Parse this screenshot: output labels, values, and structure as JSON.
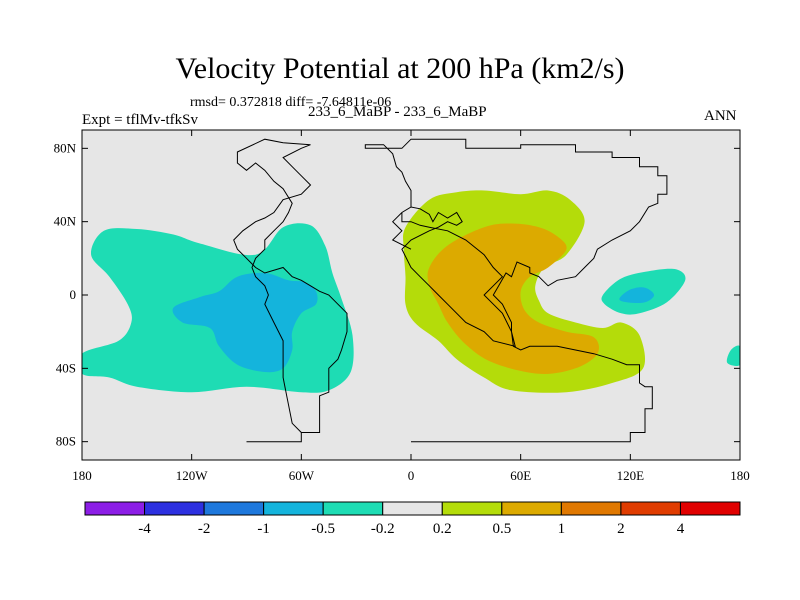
{
  "title": "Velocity Potential at 200 hPa (km2/s)",
  "stats": "rmsd= 0.372818 diff= -7.64811e-06",
  "left_label": "Expt = tflMv-tfkSv",
  "center_label": "233_6_MaBP - 233_6_MaBP",
  "right_label": "ANN",
  "chart_data": {
    "type": "contour-map",
    "title": "Velocity Potential at 200 hPa (km2/s)",
    "xlim": [
      -180,
      180
    ],
    "ylim": [
      -90,
      90
    ],
    "x_ticks": [
      {
        "value": -180,
        "label": "180"
      },
      {
        "value": -120,
        "label": "120W"
      },
      {
        "value": -60,
        "label": "60W"
      },
      {
        "value": 0,
        "label": "0"
      },
      {
        "value": 60,
        "label": "60E"
      },
      {
        "value": 120,
        "label": "120E"
      },
      {
        "value": 180,
        "label": "180"
      }
    ],
    "y_ticks": [
      {
        "value": 80,
        "label": "80N"
      },
      {
        "value": 40,
        "label": "40N"
      },
      {
        "value": 0,
        "label": "0"
      },
      {
        "value": -40,
        "label": "40S"
      },
      {
        "value": -80,
        "label": "80S"
      }
    ],
    "colorbar": {
      "colors": [
        "#8c1ee6",
        "#2d30e0",
        "#1e78dc",
        "#14b4dc",
        "#1edcb4",
        "#e6e6e6",
        "#b4dc0a",
        "#dcaa00",
        "#e07800",
        "#e03c00",
        "#e00000"
      ],
      "boundary_labels": [
        "-4",
        "-2",
        "-1",
        "-0.5",
        "-0.2",
        "0.2",
        "0.5",
        "1",
        "2",
        "4"
      ]
    },
    "regions": [
      {
        "name": "pacific-negative-outer",
        "level": "-0.5 to -0.2",
        "color": "#1edcb4",
        "points": [
          [
            -180,
            -32
          ],
          [
            -160,
            -25
          ],
          [
            -153,
            -15
          ],
          [
            -155,
            -5
          ],
          [
            -165,
            10
          ],
          [
            -175,
            22
          ],
          [
            -168,
            35
          ],
          [
            -150,
            36
          ],
          [
            -130,
            33
          ],
          [
            -115,
            28
          ],
          [
            -85,
            22
          ],
          [
            -70,
            37
          ],
          [
            -55,
            38
          ],
          [
            -47,
            27
          ],
          [
            -43,
            12
          ],
          [
            -38,
            -2
          ],
          [
            -32,
            -22
          ],
          [
            -33,
            -42
          ],
          [
            -45,
            -52
          ],
          [
            -60,
            -53
          ],
          [
            -90,
            -50
          ],
          [
            -120,
            -53
          ],
          [
            -150,
            -50
          ],
          [
            -165,
            -45
          ],
          [
            -180,
            -43
          ]
        ]
      },
      {
        "name": "pacific-negative-inner",
        "level": "-1 to -0.5",
        "color": "#14b4dc",
        "points": [
          [
            -130,
            -7
          ],
          [
            -115,
            -1
          ],
          [
            -105,
            2
          ],
          [
            -95,
            10
          ],
          [
            -80,
            12
          ],
          [
            -67,
            8
          ],
          [
            -58,
            7
          ],
          [
            -52,
            2
          ],
          [
            -52,
            -5
          ],
          [
            -60,
            -10
          ],
          [
            -65,
            -20
          ],
          [
            -65,
            -30
          ],
          [
            -70,
            -40
          ],
          [
            -80,
            -42
          ],
          [
            -95,
            -38
          ],
          [
            -105,
            -28
          ],
          [
            -110,
            -18
          ],
          [
            -125,
            -15
          ]
        ]
      },
      {
        "name": "atlantic-africa-positive-outer",
        "level": "0.2 to 0.5",
        "color": "#b4dc0a",
        "points": [
          [
            -3,
            37
          ],
          [
            10,
            52
          ],
          [
            25,
            56
          ],
          [
            40,
            57
          ],
          [
            60,
            55
          ],
          [
            75,
            57
          ],
          [
            87,
            52
          ],
          [
            95,
            40
          ],
          [
            85,
            22
          ],
          [
            73,
            15
          ],
          [
            68,
            5
          ],
          [
            70,
            -3
          ],
          [
            75,
            -10
          ],
          [
            90,
            -15
          ],
          [
            105,
            -18
          ],
          [
            115,
            -15
          ],
          [
            125,
            -22
          ],
          [
            127,
            -40
          ],
          [
            110,
            -48
          ],
          [
            85,
            -53
          ],
          [
            55,
            -52
          ],
          [
            40,
            -45
          ],
          [
            25,
            -35
          ],
          [
            15,
            -25
          ],
          [
            2,
            -15
          ],
          [
            -3,
            -5
          ],
          [
            -3,
            10
          ],
          [
            -4,
            25
          ]
        ]
      },
      {
        "name": "africa-positive-inner",
        "level": "0.5 to 1",
        "color": "#dcaa00",
        "points": [
          [
            10,
            15
          ],
          [
            20,
            27
          ],
          [
            40,
            37
          ],
          [
            55,
            39
          ],
          [
            70,
            37
          ],
          [
            80,
            32
          ],
          [
            85,
            25
          ],
          [
            75,
            15
          ],
          [
            65,
            10
          ],
          [
            60,
            2
          ],
          [
            62,
            -8
          ],
          [
            70,
            -15
          ],
          [
            85,
            -20
          ],
          [
            100,
            -23
          ],
          [
            102,
            -32
          ],
          [
            90,
            -40
          ],
          [
            70,
            -43
          ],
          [
            45,
            -37
          ],
          [
            30,
            -27
          ],
          [
            20,
            -15
          ],
          [
            15,
            -5
          ],
          [
            10,
            5
          ]
        ]
      },
      {
        "name": "indian-ocean-negative-outer",
        "level": "-0.5 to -0.2",
        "color": "#1edcb4",
        "points": [
          [
            105,
            0
          ],
          [
            115,
            9
          ],
          [
            130,
            13
          ],
          [
            145,
            14
          ],
          [
            150,
            8
          ],
          [
            140,
            -4
          ],
          [
            125,
            -10
          ],
          [
            115,
            -10
          ],
          [
            106,
            -5
          ]
        ]
      },
      {
        "name": "indian-ocean-negative-inner",
        "level": "-1 to -0.5",
        "color": "#14b4dc",
        "points": [
          [
            114,
            -2
          ],
          [
            120,
            3
          ],
          [
            128,
            4
          ],
          [
            133,
            0
          ],
          [
            128,
            -4
          ],
          [
            118,
            -4
          ]
        ]
      },
      {
        "name": "dateline-negative-edge",
        "level": "-0.5 to -0.2",
        "color": "#1edcb4",
        "points": [
          [
            173,
            -37
          ],
          [
            175,
            -30
          ],
          [
            180,
            -28
          ],
          [
            180,
            -38
          ]
        ]
      }
    ],
    "outlines": [
      [
        [
          0,
          -80
        ],
        [
          120,
          -80
        ],
        [
          120,
          -75
        ],
        [
          128,
          -75
        ],
        [
          128,
          -62
        ],
        [
          132,
          -62
        ],
        [
          132,
          -50
        ],
        [
          128,
          -50
        ],
        [
          125,
          -48
        ],
        [
          125,
          -38
        ],
        [
          118,
          -38
        ],
        [
          110,
          -35
        ],
        [
          100,
          -32
        ],
        [
          90,
          -30
        ],
        [
          80,
          -28
        ],
        [
          65,
          -28
        ],
        [
          60,
          -30
        ],
        [
          56,
          -28
        ],
        [
          55,
          -20
        ],
        [
          50,
          -10
        ],
        [
          45,
          -5
        ],
        [
          40,
          0
        ],
        [
          45,
          5
        ],
        [
          50,
          10
        ],
        [
          45,
          15
        ],
        [
          40,
          22
        ],
        [
          30,
          30
        ],
        [
          20,
          35
        ],
        [
          10,
          37
        ],
        [
          5,
          38
        ],
        [
          0,
          40
        ],
        [
          -5,
          40
        ],
        [
          -5,
          45
        ],
        [
          0,
          48
        ],
        [
          0,
          57
        ],
        [
          -3,
          62
        ],
        [
          -5,
          67
        ],
        [
          -8,
          70
        ],
        [
          -10,
          77
        ],
        [
          -15,
          82
        ],
        [
          -25,
          82
        ],
        [
          -25,
          80
        ],
        [
          -5,
          80
        ],
        [
          0,
          85
        ],
        [
          30,
          85
        ],
        [
          30,
          80
        ],
        [
          60,
          80
        ],
        [
          60,
          82
        ],
        [
          90,
          82
        ],
        [
          90,
          78
        ],
        [
          110,
          78
        ],
        [
          110,
          75
        ],
        [
          125,
          75
        ],
        [
          125,
          70
        ],
        [
          135,
          70
        ],
        [
          135,
          65
        ],
        [
          140,
          65
        ],
        [
          140,
          55
        ],
        [
          135,
          55
        ],
        [
          135,
          50
        ],
        [
          130,
          48
        ],
        [
          125,
          40
        ],
        [
          120,
          35
        ],
        [
          110,
          30
        ],
        [
          102,
          25
        ],
        [
          100,
          20
        ],
        [
          95,
          15
        ],
        [
          90,
          10
        ],
        [
          80,
          8
        ],
        [
          75,
          5
        ],
        [
          70,
          10
        ],
        [
          65,
          12
        ],
        [
          65,
          15
        ],
        [
          58,
          18
        ],
        [
          55,
          10
        ],
        [
          52,
          12
        ],
        [
          48,
          5
        ],
        [
          45,
          0
        ],
        [
          50,
          -5
        ],
        [
          55,
          -15
        ],
        [
          55,
          -20
        ],
        [
          57,
          -28
        ],
        [
          45,
          -25
        ],
        [
          40,
          -20
        ],
        [
          30,
          -15
        ],
        [
          20,
          -5
        ],
        [
          15,
          0
        ],
        [
          10,
          5
        ],
        [
          5,
          10
        ],
        [
          0,
          15
        ],
        [
          -5,
          25
        ],
        [
          0,
          30
        ],
        [
          10,
          35
        ],
        [
          15,
          37
        ],
        [
          20,
          40
        ],
        [
          25,
          38
        ],
        [
          28,
          40
        ],
        [
          25,
          45
        ],
        [
          20,
          42
        ],
        [
          15,
          45
        ],
        [
          12,
          40
        ],
        [
          10,
          44
        ],
        [
          5,
          47
        ],
        [
          0,
          48
        ],
        [
          -5,
          45
        ],
        [
          -10,
          40
        ],
        [
          -5,
          35
        ],
        [
          -10,
          30
        ],
        [
          0,
          25
        ]
      ],
      [
        [
          -90,
          -80
        ],
        [
          -60,
          -80
        ],
        [
          -60,
          -75
        ],
        [
          -50,
          -75
        ],
        [
          -50,
          -55
        ],
        [
          -45,
          -53
        ],
        [
          -45,
          -40
        ],
        [
          -40,
          -35
        ],
        [
          -38,
          -30
        ],
        [
          -35,
          -20
        ],
        [
          -35,
          -10
        ],
        [
          -40,
          -5
        ],
        [
          -45,
          0
        ],
        [
          -50,
          2
        ],
        [
          -55,
          5
        ],
        [
          -60,
          8
        ],
        [
          -65,
          10
        ],
        [
          -70,
          15
        ],
        [
          -80,
          12
        ],
        [
          -85,
          15
        ],
        [
          -90,
          20
        ],
        [
          -95,
          25
        ],
        [
          -97,
          30
        ],
        [
          -92,
          35
        ],
        [
          -85,
          40
        ],
        [
          -80,
          42
        ],
        [
          -75,
          45
        ],
        [
          -70,
          52
        ],
        [
          -60,
          55
        ],
        [
          -55,
          60
        ],
        [
          -60,
          65
        ],
        [
          -65,
          70
        ],
        [
          -70,
          75
        ],
        [
          -60,
          80
        ],
        [
          -55,
          82
        ],
        [
          -70,
          83
        ],
        [
          -80,
          85
        ],
        [
          -95,
          78
        ],
        [
          -95,
          72
        ],
        [
          -90,
          68
        ],
        [
          -85,
          72
        ],
        [
          -80,
          68
        ],
        [
          -75,
          62
        ],
        [
          -70,
          58
        ],
        [
          -65,
          50
        ],
        [
          -67,
          45
        ],
        [
          -70,
          40
        ],
        [
          -75,
          35
        ],
        [
          -80,
          30
        ],
        [
          -80,
          25
        ],
        [
          -85,
          20
        ],
        [
          -87,
          15
        ],
        [
          -85,
          10
        ],
        [
          -80,
          5
        ],
        [
          -78,
          0
        ],
        [
          -80,
          -5
        ],
        [
          -75,
          -15
        ],
        [
          -70,
          -25
        ],
        [
          -70,
          -35
        ],
        [
          -70,
          -45
        ],
        [
          -68,
          -55
        ],
        [
          -65,
          -70
        ],
        [
          -60,
          -75
        ],
        [
          -60,
          -80
        ]
      ]
    ]
  }
}
